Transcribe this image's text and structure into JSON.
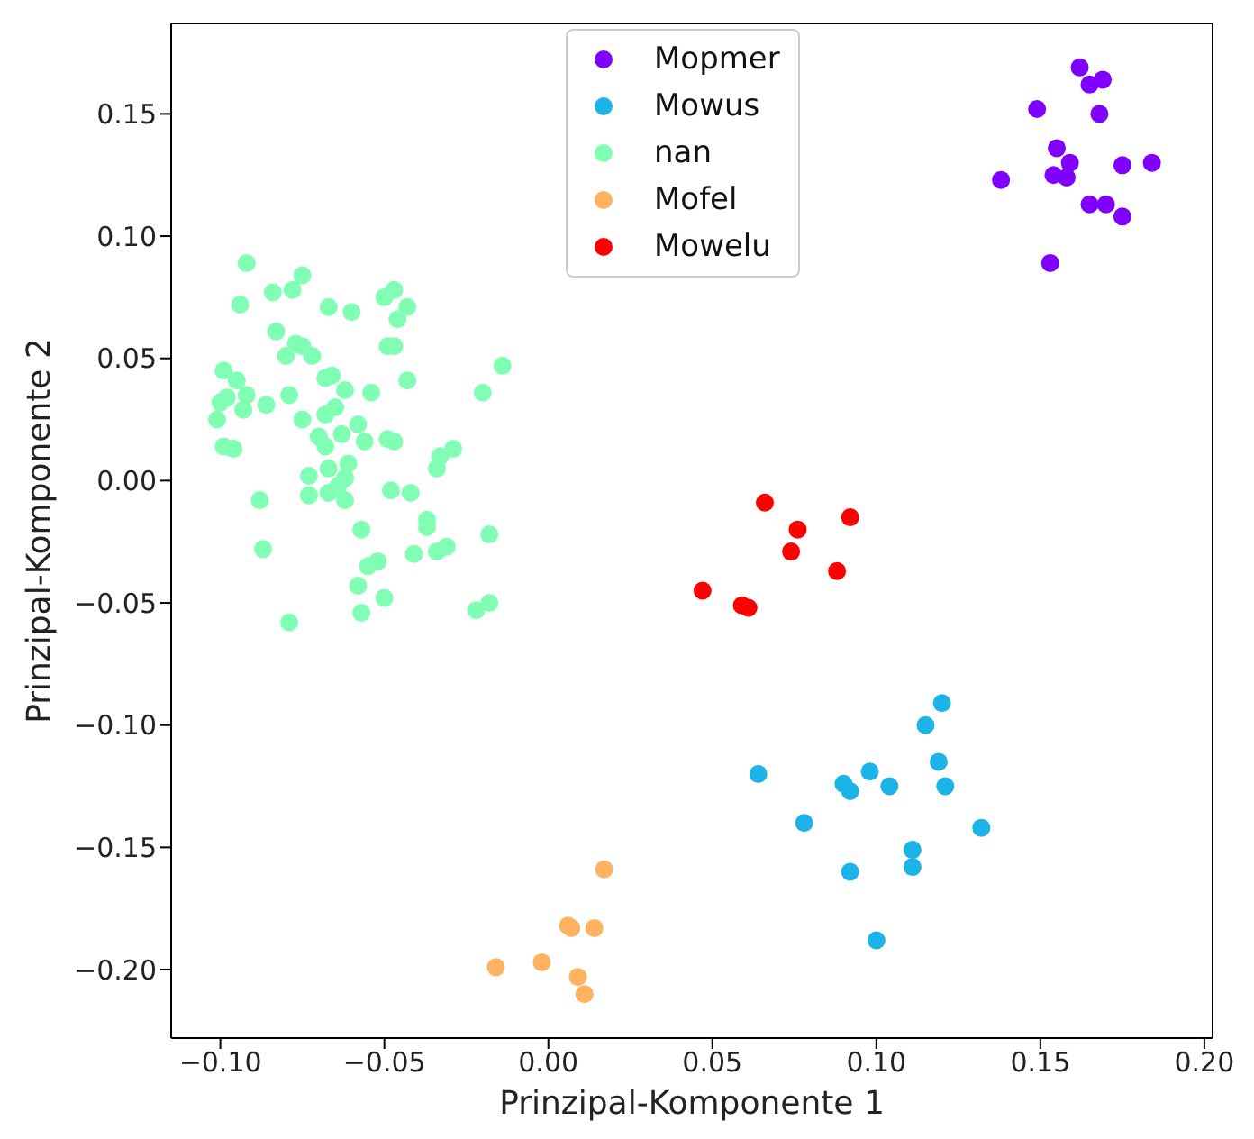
{
  "chart_data": {
    "type": "scatter",
    "xlabel": "Prinzipal-Komponente 1",
    "ylabel": "Prinzipal-Komponente 2",
    "xlim": [
      -0.115,
      0.2025
    ],
    "ylim": [
      -0.228,
      0.187
    ],
    "xticks": [
      {
        "value": -0.1,
        "label": "−0.10"
      },
      {
        "value": -0.05,
        "label": "−0.05"
      },
      {
        "value": 0,
        "label": "0.00"
      },
      {
        "value": 0.05,
        "label": "0.05"
      },
      {
        "value": 0.1,
        "label": "0.10"
      },
      {
        "value": 0.15,
        "label": "0.15"
      },
      {
        "value": 0.2,
        "label": "0.20"
      }
    ],
    "yticks": [
      {
        "value": -0.2,
        "label": "−0.20"
      },
      {
        "value": -0.15,
        "label": "−0.15"
      },
      {
        "value": -0.1,
        "label": "−0.10"
      },
      {
        "value": -0.05,
        "label": "−0.05"
      },
      {
        "value": 0,
        "label": "0.00"
      },
      {
        "value": 0.05,
        "label": "0.05"
      },
      {
        "value": 0.1,
        "label": "0.10"
      },
      {
        "value": 0.15,
        "label": "0.15"
      }
    ],
    "legend": "top",
    "marker": "circle",
    "grid": false,
    "series": [
      {
        "name": "Mopmer",
        "color": "#8000ff",
        "x": [
          0.162,
          0.165,
          0.169,
          0.149,
          0.168,
          0.155,
          0.159,
          0.154,
          0.158,
          0.175,
          0.184,
          0.138,
          0.165,
          0.17,
          0.175,
          0.153
        ],
        "values": [
          0.169,
          0.162,
          0.164,
          0.152,
          0.15,
          0.136,
          0.13,
          0.125,
          0.124,
          0.129,
          0.13,
          0.123,
          0.113,
          0.113,
          0.108,
          0.089
        ]
      },
      {
        "name": "Mowus",
        "color": "#1cb4e8",
        "x": [
          0.12,
          0.115,
          0.119,
          0.064,
          0.098,
          0.09,
          0.092,
          0.104,
          0.121,
          0.078,
          0.132,
          0.111,
          0.111,
          0.092,
          0.1
        ],
        "values": [
          -0.091,
          -0.1,
          -0.115,
          -0.12,
          -0.119,
          -0.124,
          -0.127,
          -0.125,
          -0.125,
          -0.14,
          -0.142,
          -0.151,
          -0.158,
          -0.16,
          -0.188
        ]
      },
      {
        "name": "nan",
        "color": "#80ffb4",
        "x": [
          -0.092,
          -0.075,
          -0.084,
          -0.078,
          -0.094,
          -0.067,
          -0.06,
          -0.05,
          -0.047,
          -0.043,
          -0.046,
          -0.083,
          -0.077,
          -0.075,
          -0.08,
          -0.072,
          -0.049,
          -0.047,
          -0.014,
          -0.099,
          -0.095,
          -0.068,
          -0.066,
          -0.043,
          -0.062,
          -0.054,
          -0.02,
          -0.092,
          -0.098,
          -0.1,
          -0.086,
          -0.079,
          -0.093,
          -0.065,
          -0.068,
          -0.101,
          -0.075,
          -0.058,
          -0.07,
          -0.063,
          -0.056,
          -0.049,
          -0.047,
          -0.099,
          -0.096,
          -0.068,
          -0.029,
          -0.033,
          -0.034,
          -0.061,
          -0.067,
          -0.073,
          -0.062,
          -0.064,
          -0.067,
          -0.073,
          -0.062,
          -0.048,
          -0.042,
          -0.088,
          -0.057,
          -0.037,
          -0.037,
          -0.018,
          -0.087,
          -0.041,
          -0.034,
          -0.031,
          -0.055,
          -0.052,
          -0.058,
          -0.05,
          -0.022,
          -0.018,
          -0.057,
          -0.079
        ],
        "values": [
          0.089,
          0.084,
          0.077,
          0.078,
          0.072,
          0.071,
          0.069,
          0.075,
          0.078,
          0.071,
          0.066,
          0.061,
          0.056,
          0.055,
          0.051,
          0.051,
          0.055,
          0.055,
          0.047,
          0.045,
          0.041,
          0.042,
          0.043,
          0.041,
          0.037,
          0.036,
          0.036,
          0.035,
          0.034,
          0.032,
          0.031,
          0.035,
          0.029,
          0.03,
          0.027,
          0.025,
          0.025,
          0.023,
          0.018,
          0.019,
          0.016,
          0.017,
          0.016,
          0.014,
          0.013,
          0.014,
          0.013,
          0.01,
          0.005,
          0.007,
          0.005,
          0.002,
          0.001,
          -0.002,
          -0.005,
          -0.006,
          -0.008,
          -0.004,
          -0.005,
          -0.008,
          -0.02,
          -0.016,
          -0.019,
          -0.022,
          -0.028,
          -0.03,
          -0.029,
          -0.027,
          -0.035,
          -0.033,
          -0.043,
          -0.048,
          -0.053,
          -0.05,
          -0.054,
          -0.058
        ]
      },
      {
        "name": "Mofel",
        "color": "#ffb360",
        "x": [
          0.017,
          0.006,
          0.007,
          0.014,
          -0.002,
          -0.016,
          0.009,
          0.011
        ],
        "values": [
          -0.159,
          -0.182,
          -0.183,
          -0.183,
          -0.197,
          -0.199,
          -0.203,
          -0.21
        ]
      },
      {
        "name": "Mowelu",
        "color": "#ff0000",
        "x": [
          0.066,
          0.076,
          0.092,
          0.074,
          0.088,
          0.047,
          0.059,
          0.061
        ],
        "values": [
          -0.009,
          -0.02,
          -0.015,
          -0.029,
          -0.037,
          -0.045,
          -0.051,
          -0.052
        ]
      }
    ]
  }
}
